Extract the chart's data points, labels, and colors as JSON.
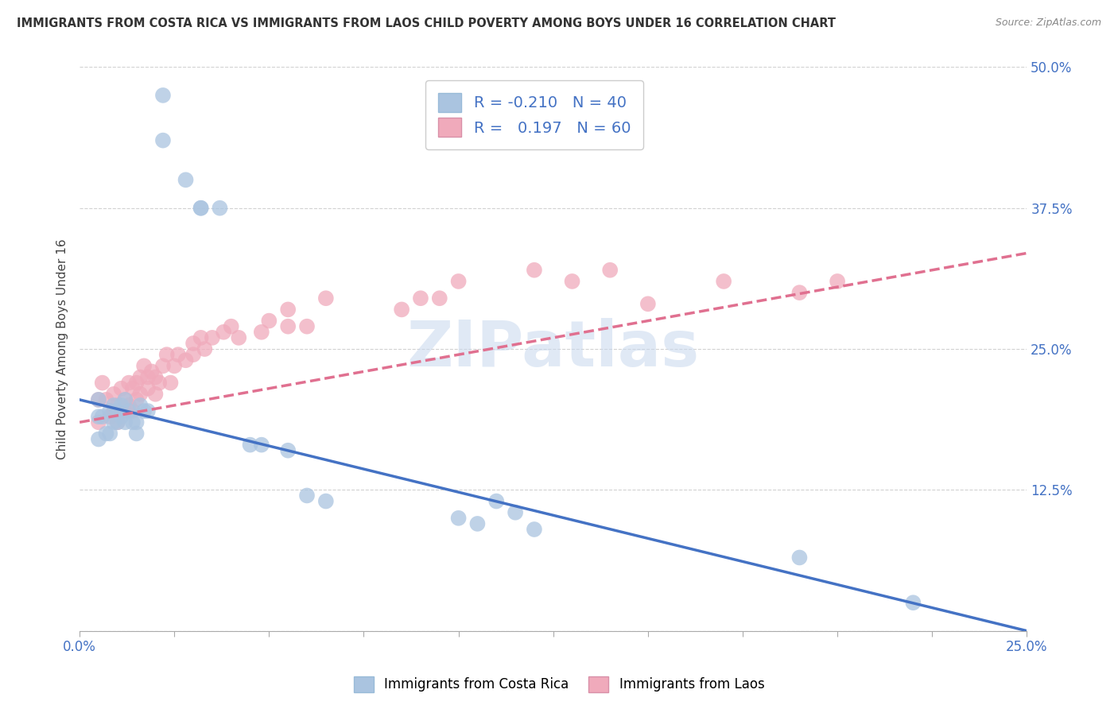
{
  "title": "IMMIGRANTS FROM COSTA RICA VS IMMIGRANTS FROM LAOS CHILD POVERTY AMONG BOYS UNDER 16 CORRELATION CHART",
  "source": "Source: ZipAtlas.com",
  "ylabel": "Child Poverty Among Boys Under 16",
  "xlim": [
    0.0,
    0.25
  ],
  "ylim": [
    0.0,
    0.5
  ],
  "xticks": [
    0.0,
    0.025,
    0.05,
    0.075,
    0.1,
    0.125,
    0.15,
    0.175,
    0.2,
    0.225,
    0.25
  ],
  "yticks": [
    0.0,
    0.125,
    0.25,
    0.375,
    0.5
  ],
  "ytick_labels": [
    "",
    "12.5%",
    "25.0%",
    "37.5%",
    "50.0%"
  ],
  "xtick_labels": [
    "0.0%",
    "",
    "",
    "",
    "",
    "",
    "",
    "",
    "",
    "",
    "25.0%"
  ],
  "legend_r_blue": "-0.210",
  "legend_n_blue": "40",
  "legend_r_pink": "0.197",
  "legend_n_pink": "60",
  "blue_color": "#aac4e0",
  "pink_color": "#f0aabb",
  "trend_blue": "#4472c4",
  "trend_pink": "#e07090",
  "watermark": "ZIPatlas",
  "blue_scatter_x": [
    0.022,
    0.022,
    0.028,
    0.032,
    0.032,
    0.037,
    0.005,
    0.005,
    0.005,
    0.006,
    0.007,
    0.008,
    0.008,
    0.009,
    0.009,
    0.01,
    0.01,
    0.011,
    0.011,
    0.012,
    0.012,
    0.013,
    0.014,
    0.015,
    0.015,
    0.016,
    0.017,
    0.018,
    0.045,
    0.048,
    0.055,
    0.06,
    0.065,
    0.1,
    0.105,
    0.11,
    0.115,
    0.12,
    0.19,
    0.22
  ],
  "blue_scatter_y": [
    0.475,
    0.435,
    0.4,
    0.375,
    0.375,
    0.375,
    0.205,
    0.19,
    0.17,
    0.19,
    0.175,
    0.195,
    0.175,
    0.2,
    0.185,
    0.195,
    0.185,
    0.2,
    0.19,
    0.205,
    0.185,
    0.195,
    0.185,
    0.175,
    0.185,
    0.2,
    0.195,
    0.195,
    0.165,
    0.165,
    0.16,
    0.12,
    0.115,
    0.1,
    0.095,
    0.115,
    0.105,
    0.09,
    0.065,
    0.025
  ],
  "pink_scatter_x": [
    0.005,
    0.005,
    0.006,
    0.007,
    0.008,
    0.009,
    0.009,
    0.01,
    0.01,
    0.011,
    0.011,
    0.012,
    0.012,
    0.013,
    0.013,
    0.014,
    0.014,
    0.015,
    0.015,
    0.016,
    0.016,
    0.017,
    0.018,
    0.018,
    0.019,
    0.02,
    0.02,
    0.021,
    0.022,
    0.023,
    0.024,
    0.025,
    0.026,
    0.028,
    0.03,
    0.03,
    0.032,
    0.033,
    0.035,
    0.038,
    0.04,
    0.042,
    0.048,
    0.05,
    0.055,
    0.055,
    0.06,
    0.065,
    0.085,
    0.09,
    0.095,
    0.1,
    0.115,
    0.12,
    0.13,
    0.14,
    0.15,
    0.17,
    0.19,
    0.2
  ],
  "pink_scatter_y": [
    0.205,
    0.185,
    0.22,
    0.205,
    0.19,
    0.21,
    0.195,
    0.2,
    0.185,
    0.215,
    0.195,
    0.205,
    0.195,
    0.22,
    0.2,
    0.215,
    0.195,
    0.22,
    0.205,
    0.225,
    0.21,
    0.235,
    0.225,
    0.215,
    0.23,
    0.225,
    0.21,
    0.22,
    0.235,
    0.245,
    0.22,
    0.235,
    0.245,
    0.24,
    0.255,
    0.245,
    0.26,
    0.25,
    0.26,
    0.265,
    0.27,
    0.26,
    0.265,
    0.275,
    0.285,
    0.27,
    0.27,
    0.295,
    0.285,
    0.295,
    0.295,
    0.31,
    0.44,
    0.32,
    0.31,
    0.32,
    0.29,
    0.31,
    0.3,
    0.31
  ],
  "trend_blue_x0": 0.0,
  "trend_blue_y0": 0.205,
  "trend_blue_x1": 0.25,
  "trend_blue_y1": 0.0,
  "trend_pink_x0": 0.0,
  "trend_pink_y0": 0.185,
  "trend_pink_x1": 0.25,
  "trend_pink_y1": 0.335
}
